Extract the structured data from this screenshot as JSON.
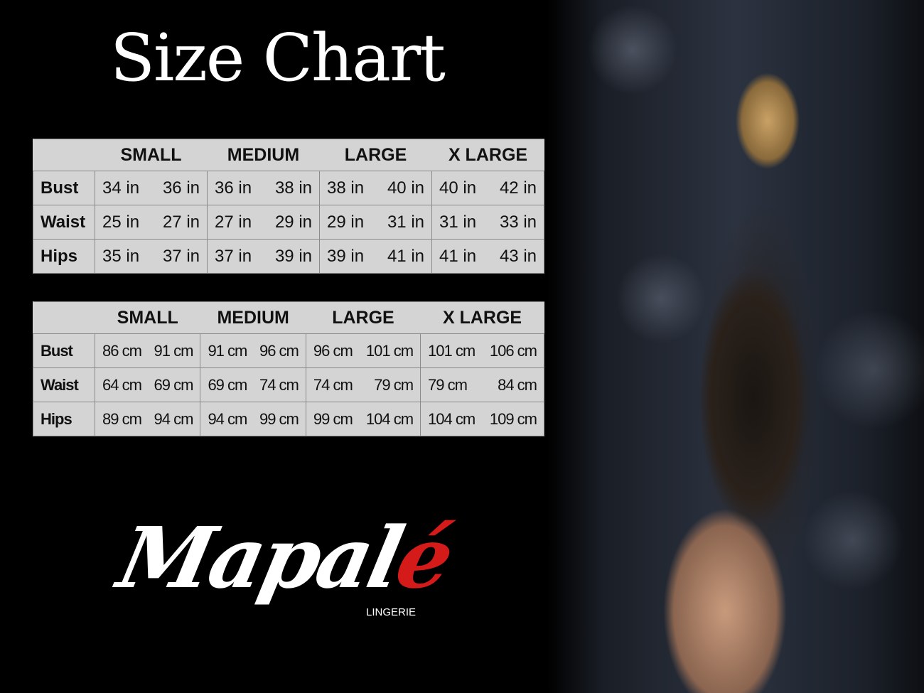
{
  "title": "Size Chart",
  "brand": {
    "name_main": "Mapal",
    "name_accent": "é",
    "subtitle": "LINGERIE",
    "accent_color": "#d51a1a"
  },
  "sizes": [
    "SMALL",
    "MEDIUM",
    "LARGE",
    "X LARGE"
  ],
  "tables": [
    {
      "rows": [
        {
          "label": "Bust",
          "values": [
            "34 in",
            "36 in",
            "36 in",
            "38 in",
            "38 in",
            "40 in",
            "40 in",
            "42 in"
          ]
        },
        {
          "label": "Waist",
          "values": [
            "25 in",
            "27 in",
            "27 in",
            "29 in",
            "29 in",
            "31 in",
            "31 in",
            "33 in"
          ]
        },
        {
          "label": "Hips",
          "values": [
            "35 in",
            "37 in",
            "37 in",
            "39 in",
            "39 in",
            "41 in",
            "41 in",
            "43 in"
          ]
        }
      ]
    },
    {
      "rows": [
        {
          "label": "Bust",
          "values": [
            "86 cm",
            "91 cm",
            "91 cm",
            "96 cm",
            "96 cm",
            "101 cm",
            "101 cm",
            "106 cm"
          ]
        },
        {
          "label": "Waist",
          "values": [
            "64 cm",
            "69 cm",
            "69 cm",
            "74 cm",
            "74 cm",
            "79  cm",
            "79 cm",
            "84 cm"
          ]
        },
        {
          "label": "Hips",
          "values": [
            "89 cm",
            "94 cm",
            "94 cm",
            "99 cm",
            "99 cm",
            "104 cm",
            "104 cm",
            "109 cm"
          ]
        }
      ]
    }
  ]
}
